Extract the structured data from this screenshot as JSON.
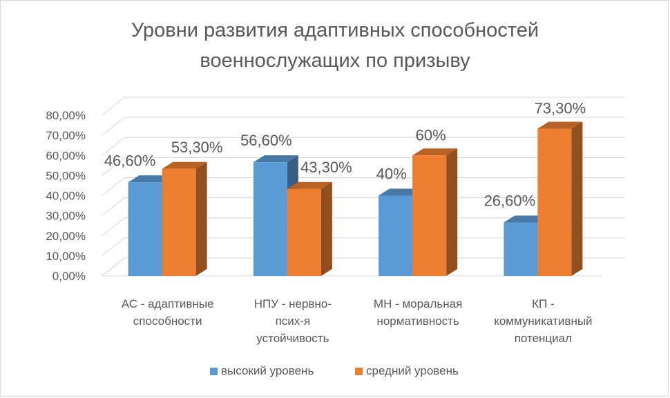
{
  "chart_data": {
    "type": "bar",
    "title_line1": "Уровни развития адаптивных способностей",
    "title_line2": "военнослужащих по призыву",
    "categories": [
      [
        "АС - адаптивные",
        "способности"
      ],
      [
        "НПУ - нервно-",
        "псих-я",
        "устойчивость"
      ],
      [
        "МН - моральная",
        "нормативность"
      ],
      [
        "КП -",
        "коммуникативный",
        "потенциал"
      ]
    ],
    "series": [
      {
        "name": "высокий уровень",
        "color": "#5b9bd5",
        "values": [
          46.6,
          56.6,
          40,
          26.6
        ],
        "labels": [
          "46,60%",
          "56,60%",
          "40%",
          "26,60%"
        ]
      },
      {
        "name": "средний уровень",
        "color": "#ed7d31",
        "values": [
          53.3,
          43.3,
          60,
          73.3
        ],
        "labels": [
          "53,30%",
          "43,30%",
          "60%",
          "73,30%"
        ]
      }
    ],
    "yticks": [
      "0,00%",
      "10,00%",
      "20,00%",
      "30,00%",
      "40,00%",
      "50,00%",
      "60,00%",
      "70,00%",
      "80,00%"
    ],
    "ylim": [
      0,
      80
    ],
    "grid": true,
    "legend_position": "bottom"
  }
}
